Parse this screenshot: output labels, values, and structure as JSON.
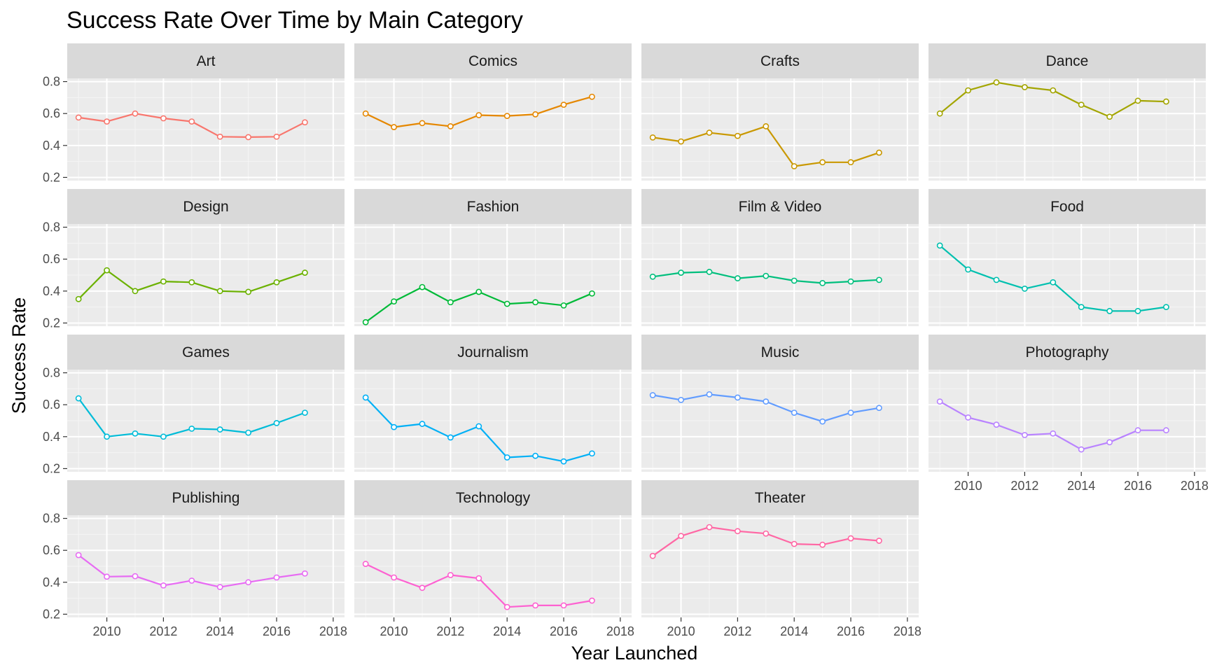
{
  "chart_data": {
    "type": "line",
    "title": "Success Rate Over Time by Main Category",
    "xlabel": "Year Launched",
    "ylabel": "Success Rate",
    "x": [
      2009,
      2010,
      2011,
      2012,
      2013,
      2014,
      2015,
      2016,
      2017
    ],
    "xlim": [
      2008.6,
      2018.4
    ],
    "ylim": [
      0.18,
      0.82
    ],
    "x_ticks": [
      2010,
      2012,
      2014,
      2016,
      2018
    ],
    "y_ticks": [
      0.2,
      0.4,
      0.6,
      0.8
    ],
    "y_tick_labels": [
      "0.2",
      "0.4",
      "0.6",
      "0.8"
    ],
    "grid": true,
    "facets": [
      {
        "name": "Art",
        "color": "#F8766D",
        "values": [
          0.575,
          0.55,
          0.6,
          0.57,
          0.55,
          0.455,
          0.452,
          0.455,
          0.545
        ]
      },
      {
        "name": "Comics",
        "color": "#E58700",
        "values": [
          0.6,
          0.515,
          0.54,
          0.52,
          0.59,
          0.585,
          0.595,
          0.655,
          0.705
        ]
      },
      {
        "name": "Crafts",
        "color": "#C99800",
        "values": [
          0.45,
          0.425,
          0.48,
          0.46,
          0.52,
          0.27,
          0.295,
          0.295,
          0.355
        ]
      },
      {
        "name": "Dance",
        "color": "#A3A500",
        "values": [
          0.6,
          0.745,
          0.795,
          0.765,
          0.745,
          0.655,
          0.58,
          0.68,
          0.675
        ]
      },
      {
        "name": "Design",
        "color": "#6BB100",
        "values": [
          0.35,
          0.53,
          0.4,
          0.46,
          0.455,
          0.4,
          0.395,
          0.455,
          0.515
        ]
      },
      {
        "name": "Fashion",
        "color": "#00BA38",
        "values": [
          0.205,
          0.335,
          0.425,
          0.33,
          0.395,
          0.32,
          0.33,
          0.31,
          0.385
        ]
      },
      {
        "name": "Film & Video",
        "color": "#00BF7D",
        "values": [
          0.49,
          0.515,
          0.52,
          0.48,
          0.495,
          0.465,
          0.45,
          0.46,
          0.47
        ]
      },
      {
        "name": "Food",
        "color": "#00C0AF",
        "values": [
          0.685,
          0.535,
          0.47,
          0.415,
          0.455,
          0.3,
          0.275,
          0.275,
          0.3
        ]
      },
      {
        "name": "Games",
        "color": "#00BCD8",
        "values": [
          0.64,
          0.4,
          0.42,
          0.4,
          0.45,
          0.445,
          0.425,
          0.485,
          0.55
        ]
      },
      {
        "name": "Journalism",
        "color": "#00B0F6",
        "values": [
          0.645,
          0.46,
          0.48,
          0.395,
          0.465,
          0.27,
          0.28,
          0.245,
          0.295
        ]
      },
      {
        "name": "Music",
        "color": "#619CFF",
        "values": [
          0.66,
          0.63,
          0.665,
          0.645,
          0.62,
          0.55,
          0.495,
          0.55,
          0.58
        ]
      },
      {
        "name": "Photography",
        "color": "#B983FF",
        "values": [
          0.62,
          0.52,
          0.475,
          0.41,
          0.42,
          0.32,
          0.365,
          0.44,
          0.44
        ]
      },
      {
        "name": "Publishing",
        "color": "#E76BF3",
        "values": [
          0.57,
          0.435,
          0.438,
          0.38,
          0.41,
          0.37,
          0.4,
          0.43,
          0.455
        ]
      },
      {
        "name": "Technology",
        "color": "#FD61D1",
        "values": [
          0.515,
          0.43,
          0.365,
          0.445,
          0.425,
          0.245,
          0.255,
          0.255,
          0.285
        ]
      },
      {
        "name": "Theater",
        "color": "#FF67A4",
        "values": [
          0.565,
          0.69,
          0.745,
          0.72,
          0.705,
          0.64,
          0.635,
          0.675,
          0.66
        ]
      }
    ]
  }
}
